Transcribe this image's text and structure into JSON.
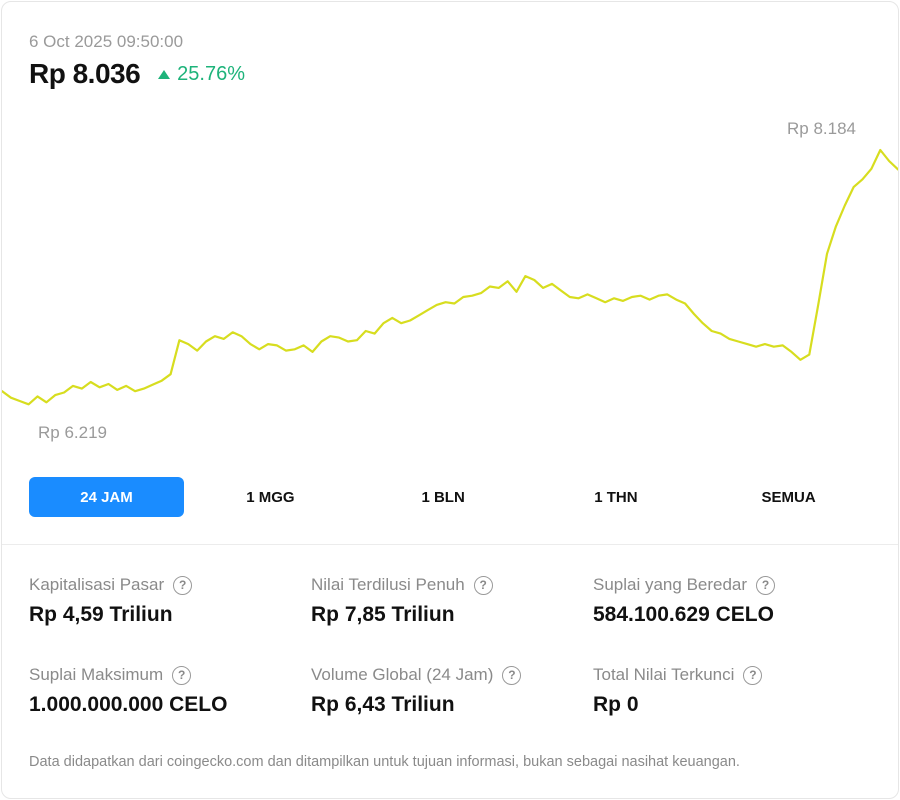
{
  "header": {
    "timestamp": "6 Oct 2025 09:50:00",
    "price": "Rp 8.036",
    "change": "25.76%",
    "change_direction": "up",
    "change_color": "#1db37a"
  },
  "chart": {
    "high_label": "Rp 8.184",
    "low_label": "Rp 6.219",
    "line_color": "#d7dd1f"
  },
  "chart_data": {
    "type": "line",
    "title": "",
    "xlabel": "",
    "ylabel": "",
    "ylim": [
      6219,
      8184
    ],
    "x_range_label": "24 JAM",
    "series": [
      {
        "values": [
          6340,
          6290,
          6265,
          6240,
          6300,
          6255,
          6310,
          6330,
          6380,
          6360,
          6410,
          6370,
          6395,
          6350,
          6380,
          6340,
          6360,
          6390,
          6420,
          6470,
          6730,
          6700,
          6650,
          6720,
          6760,
          6740,
          6790,
          6760,
          6700,
          6660,
          6700,
          6690,
          6650,
          6660,
          6690,
          6640,
          6720,
          6760,
          6750,
          6720,
          6730,
          6800,
          6780,
          6860,
          6900,
          6860,
          6880,
          6920,
          6960,
          7000,
          7020,
          7010,
          7060,
          7070,
          7090,
          7140,
          7130,
          7180,
          7100,
          7220,
          7190,
          7130,
          7160,
          7110,
          7060,
          7050,
          7080,
          7050,
          7020,
          7050,
          7030,
          7060,
          7070,
          7040,
          7070,
          7080,
          7040,
          7010,
          6930,
          6860,
          6800,
          6780,
          6740,
          6720,
          6700,
          6680,
          6700,
          6680,
          6690,
          6640,
          6580,
          6620,
          7000,
          7390,
          7600,
          7760,
          7900,
          7960,
          8040,
          8184,
          8100,
          8036
        ]
      }
    ]
  },
  "tabs": {
    "items": [
      {
        "label": "24 JAM"
      },
      {
        "label": "1 MGG"
      },
      {
        "label": "1 BLN"
      },
      {
        "label": "1 THN"
      },
      {
        "label": "SEMUA"
      }
    ],
    "active_color": "#1a8cff"
  },
  "stats": [
    {
      "label": "Kapitalisasi Pasar",
      "value": "Rp 4,59 Triliun"
    },
    {
      "label": "Nilai Terdilusi Penuh",
      "value": "Rp 7,85 Triliun"
    },
    {
      "label": "Suplai yang Beredar",
      "value": "584.100.629 CELO"
    },
    {
      "label": "Suplai Maksimum",
      "value": "1.000.000.000 CELO"
    },
    {
      "label": "Volume Global (24 Jam)",
      "value": "Rp 6,43 Triliun"
    },
    {
      "label": "Total Nilai Terkunci",
      "value": "Rp 0"
    }
  ],
  "info_icon_glyph": "?",
  "footer": {
    "text": "Data didapatkan dari coingecko.com dan ditampilkan untuk tujuan informasi, bukan sebagai nasihat keuangan."
  }
}
